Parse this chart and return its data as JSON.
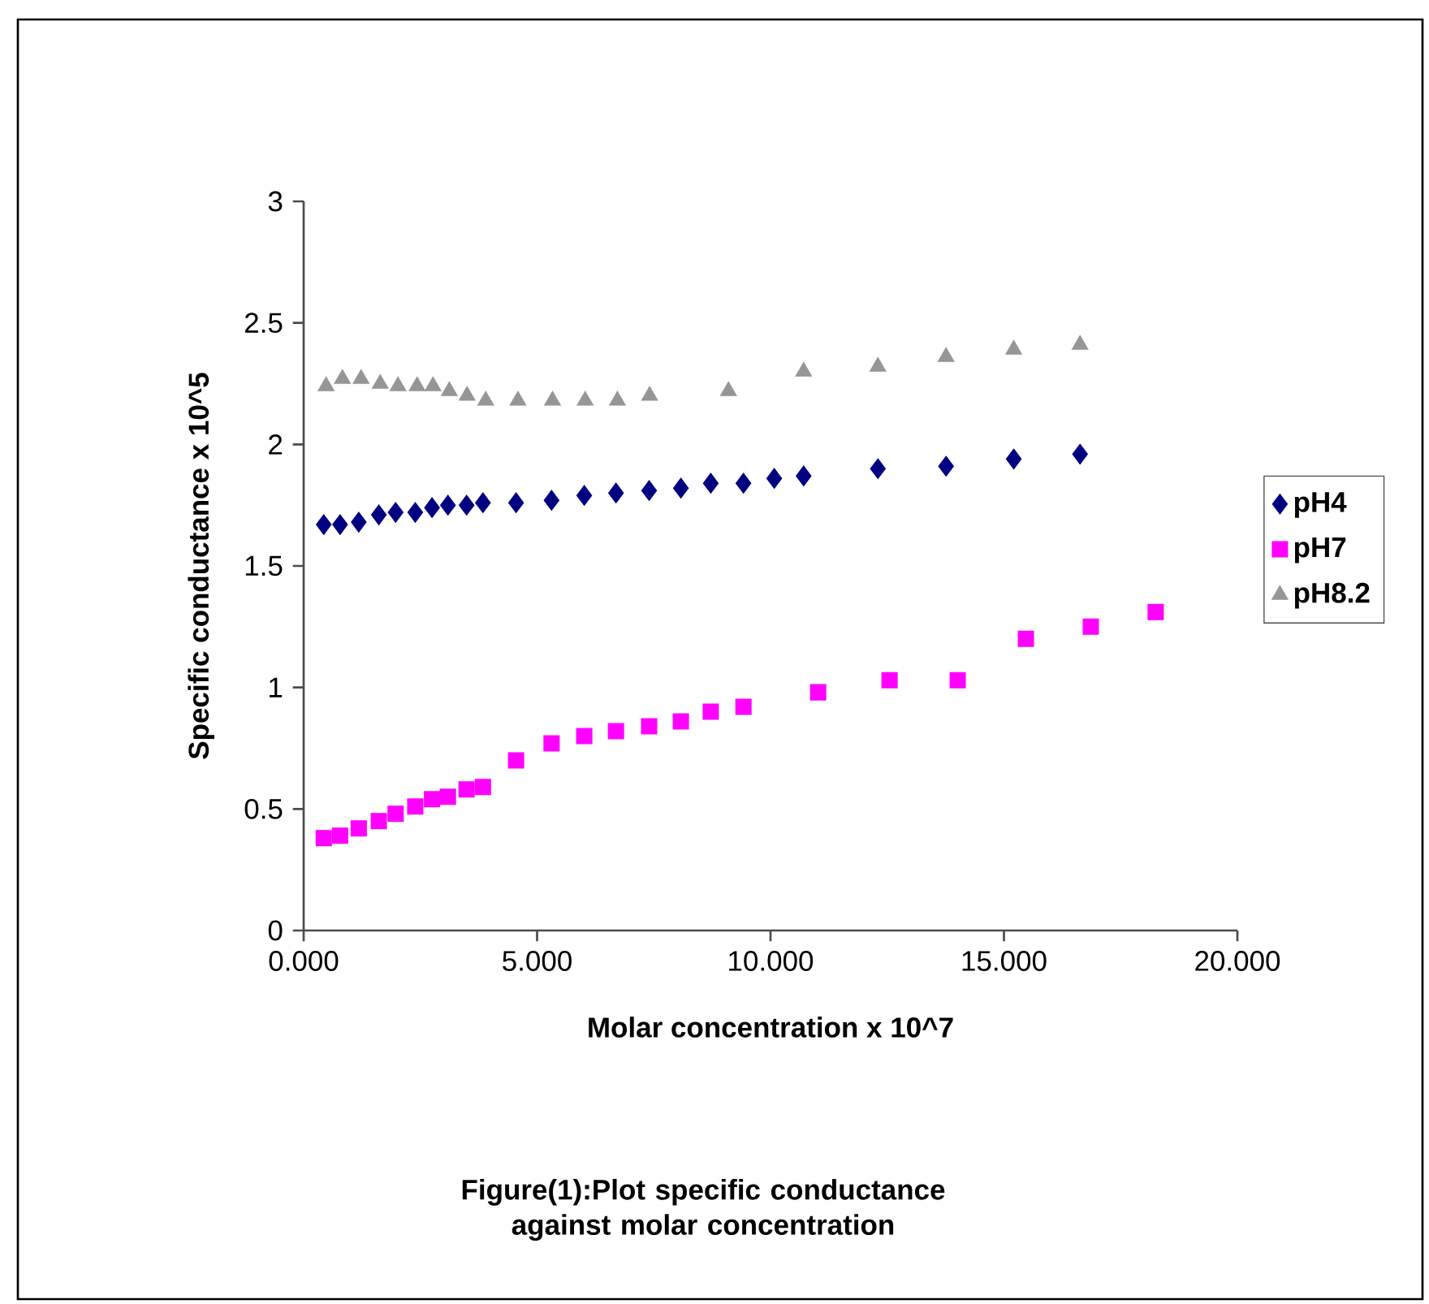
{
  "chart_data": {
    "type": "scatter",
    "xlabel": "Molar concentration x 10^7",
    "ylabel": "Specific conductance x 10^5",
    "annotations": [
      "Figure(1):Plot specific conductance against molar concentration"
    ],
    "xlim": [
      0,
      20
    ],
    "ylim": [
      0,
      3
    ],
    "xticks": [
      {
        "value": 0,
        "label": "0.000"
      },
      {
        "value": 5,
        "label": "5.000"
      },
      {
        "value": 10,
        "label": "10.000"
      },
      {
        "value": 15,
        "label": "15.000"
      },
      {
        "value": 20,
        "label": "20.000"
      }
    ],
    "yticks": [
      0,
      0.5,
      1,
      1.5,
      2,
      2.5,
      3
    ],
    "grid": false,
    "legend": "right",
    "series": [
      {
        "name": "pH4",
        "color": "#000080",
        "marker": "diamond",
        "x": [
          0.43,
          0.78,
          1.18,
          1.61,
          1.97,
          2.39,
          2.75,
          3.09,
          3.49,
          3.84,
          4.55,
          5.31,
          6.01,
          6.69,
          7.4,
          8.08,
          8.72,
          9.42,
          10.08,
          10.71,
          12.3,
          13.76,
          15.21,
          16.63
        ],
        "values": [
          1.67,
          1.67,
          1.68,
          1.71,
          1.72,
          1.72,
          1.74,
          1.75,
          1.75,
          1.76,
          1.76,
          1.77,
          1.79,
          1.8,
          1.81,
          1.82,
          1.84,
          1.84,
          1.86,
          1.87,
          1.9,
          1.91,
          1.94,
          1.96
        ]
      },
      {
        "name": "pH7",
        "color": "#ff00ff",
        "marker": "square",
        "x": [
          0.43,
          0.78,
          1.18,
          1.61,
          1.97,
          2.39,
          2.75,
          3.09,
          3.49,
          3.84,
          4.55,
          5.31,
          6.01,
          6.69,
          7.4,
          8.08,
          8.72,
          9.42,
          11.02,
          12.55,
          14.01,
          15.47,
          16.86,
          18.25
        ],
        "values": [
          0.38,
          0.39,
          0.42,
          0.45,
          0.48,
          0.51,
          0.54,
          0.55,
          0.58,
          0.59,
          0.7,
          0.77,
          0.8,
          0.82,
          0.84,
          0.86,
          0.9,
          0.92,
          0.98,
          1.03,
          1.03,
          1.2,
          1.25,
          1.31
        ]
      },
      {
        "name": "pH8.2",
        "color": "#969696",
        "marker": "triangle",
        "x": [
          0.48,
          0.83,
          1.23,
          1.64,
          2.02,
          2.43,
          2.77,
          3.12,
          3.5,
          3.9,
          4.59,
          5.33,
          6.03,
          6.72,
          7.41,
          9.1,
          10.71,
          12.3,
          13.76,
          15.21,
          16.63
        ],
        "values": [
          2.24,
          2.27,
          2.27,
          2.25,
          2.24,
          2.24,
          2.24,
          2.22,
          2.2,
          2.18,
          2.18,
          2.18,
          2.18,
          2.18,
          2.2,
          2.22,
          2.3,
          2.32,
          2.36,
          2.39,
          2.41
        ]
      }
    ]
  }
}
